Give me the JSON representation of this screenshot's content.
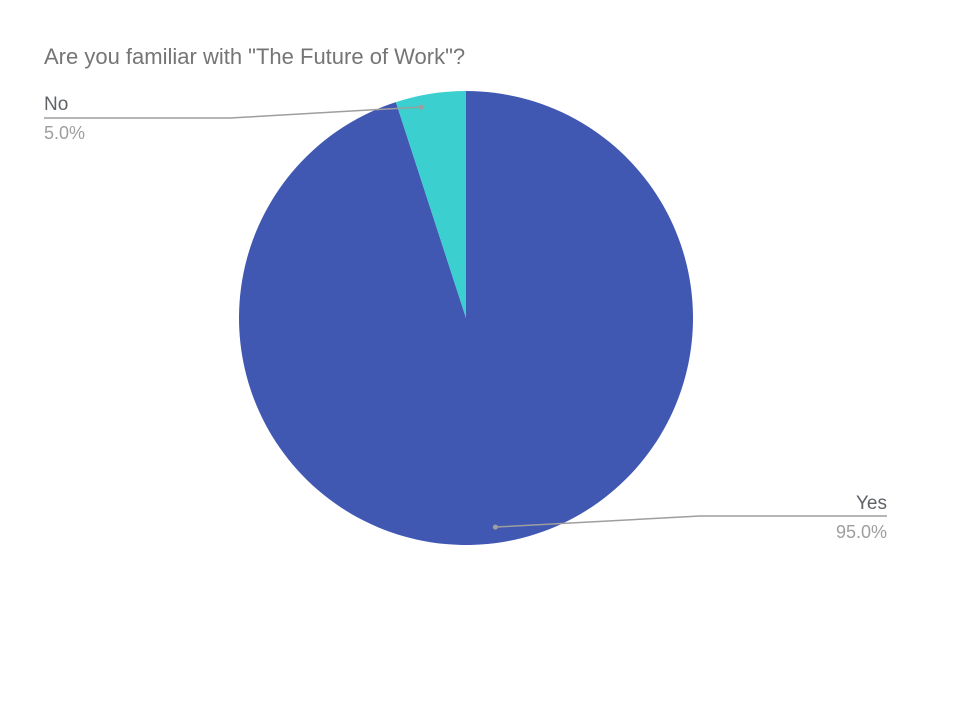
{
  "chart_data": {
    "type": "pie",
    "title": "Are you familiar with \"The Future of Work\"?",
    "slices": [
      {
        "label": "Yes",
        "value": 95.0,
        "percent_label": "95.0%",
        "color": "#4158b3"
      },
      {
        "label": "No",
        "value": 5.0,
        "percent_label": "5.0%",
        "color": "#3ccfcf"
      }
    ],
    "legend": "none",
    "labels": "outside-with-leader-lines"
  }
}
